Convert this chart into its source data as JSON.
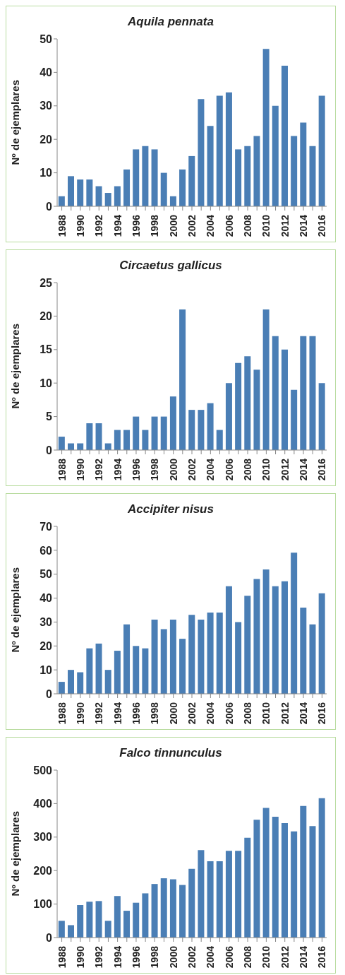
{
  "chart_data": [
    {
      "type": "bar",
      "title": "Aquila pennata",
      "ylabel": "Nº de ejemplares",
      "categories": [
        "1988",
        null,
        "1990",
        null,
        "1992",
        null,
        "1994",
        null,
        "1996",
        null,
        "1998",
        null,
        "2000",
        null,
        "2002",
        null,
        "2004",
        null,
        "2006",
        null,
        "2008",
        null,
        "2010",
        null,
        "2012",
        null,
        "2014",
        null,
        "2016"
      ],
      "values": [
        3,
        9,
        8,
        8,
        6,
        4,
        6,
        11,
        17,
        18,
        17,
        10,
        3,
        11,
        15,
        32,
        24,
        33,
        34,
        17,
        18,
        21,
        47,
        30,
        42,
        21,
        25,
        18,
        33
      ],
      "color": "#4a7eb5",
      "ylim": [
        0,
        50
      ],
      "yticks": [
        0,
        10,
        20,
        30,
        40,
        50
      ]
    },
    {
      "type": "bar",
      "title": "Circaetus gallicus",
      "ylabel": "Nº de ejemplares",
      "categories": [
        "1988",
        null,
        "1990",
        null,
        "1992",
        null,
        "1994",
        null,
        "1996",
        null,
        "1998",
        null,
        "2000",
        null,
        "2002",
        null,
        "2004",
        null,
        "2006",
        null,
        "2008",
        null,
        "2010",
        null,
        "2012",
        null,
        "2014",
        null,
        "2016"
      ],
      "values": [
        2,
        1,
        1,
        4,
        4,
        1,
        3,
        3,
        5,
        3,
        5,
        5,
        8,
        21,
        6,
        6,
        7,
        3,
        10,
        13,
        14,
        12,
        21,
        17,
        15,
        9,
        17,
        17,
        10
      ],
      "color": "#4a7eb5",
      "ylim": [
        0,
        25
      ],
      "yticks": [
        0,
        5,
        10,
        15,
        20,
        25
      ]
    },
    {
      "type": "bar",
      "title": "Accipiter nisus",
      "ylabel": "Nº de ejemplares",
      "categories": [
        "1988",
        null,
        "1990",
        null,
        "1992",
        null,
        "1994",
        null,
        "1996",
        null,
        "1998",
        null,
        "2000",
        null,
        "2002",
        null,
        "2004",
        null,
        "2006",
        null,
        "2008",
        null,
        "2010",
        null,
        "2012",
        null,
        "2014",
        null,
        "2016"
      ],
      "values": [
        5,
        10,
        9,
        19,
        21,
        10,
        18,
        29,
        20,
        19,
        31,
        27,
        31,
        23,
        33,
        31,
        34,
        34,
        45,
        30,
        41,
        48,
        52,
        45,
        47,
        59,
        36,
        29,
        42
      ],
      "color": "#4a7eb5",
      "ylim": [
        0,
        70
      ],
      "yticks": [
        0,
        10,
        20,
        30,
        40,
        50,
        60,
        70
      ]
    },
    {
      "type": "bar",
      "title": "Falco tinnunculus",
      "ylabel": "Nº de ejemplares",
      "categories": [
        "1988",
        null,
        "1990",
        null,
        "1992",
        null,
        "1994",
        null,
        "1996",
        null,
        "1998",
        null,
        "2000",
        null,
        "2002",
        null,
        "2004",
        null,
        "2006",
        null,
        "2008",
        null,
        "2010",
        null,
        "2012",
        null,
        "2014",
        null,
        "2016"
      ],
      "values": [
        50,
        37,
        97,
        107,
        109,
        50,
        124,
        80,
        104,
        132,
        160,
        177,
        174,
        157,
        205,
        261,
        228,
        228,
        259,
        259,
        298,
        352,
        387,
        361,
        342,
        317,
        393,
        333,
        416
      ],
      "color": "#4a7eb5",
      "ylim": [
        0,
        500
      ],
      "yticks": [
        0,
        100,
        200,
        300,
        400,
        500
      ]
    }
  ]
}
